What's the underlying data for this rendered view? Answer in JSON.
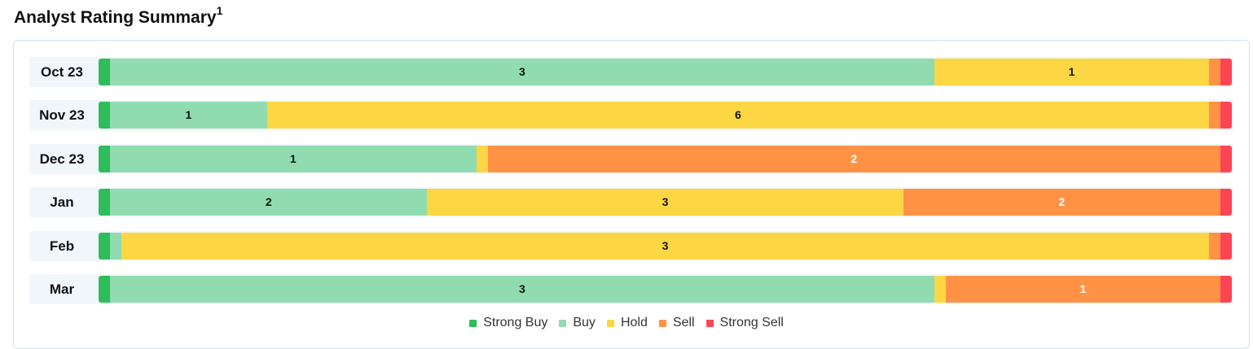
{
  "header": {
    "title": "Analyst Rating Summary",
    "footnote": "1"
  },
  "chart_data": {
    "type": "bar",
    "orientation": "horizontal",
    "stacked": true,
    "normalized": true,
    "categories": [
      "Oct 23",
      "Nov 23",
      "Dec 23",
      "Jan",
      "Feb",
      "Mar"
    ],
    "series": [
      {
        "name": "Strong Buy",
        "color": "#2dbd5a",
        "values": [
          0,
          0,
          0,
          0,
          0,
          0
        ]
      },
      {
        "name": "Buy",
        "color": "#90dcb0",
        "values": [
          3,
          1,
          1,
          2,
          0,
          3
        ]
      },
      {
        "name": "Hold",
        "color": "#fdd643",
        "values": [
          1,
          6,
          0,
          3,
          3,
          0
        ]
      },
      {
        "name": "Sell",
        "color": "#ff9244",
        "values": [
          0,
          0,
          2,
          2,
          0,
          1
        ]
      },
      {
        "name": "Strong Sell",
        "color": "#fb4556",
        "values": [
          0,
          0,
          0,
          0,
          0,
          0
        ]
      }
    ],
    "legend_position": "bottom-center",
    "grid": false
  }
}
